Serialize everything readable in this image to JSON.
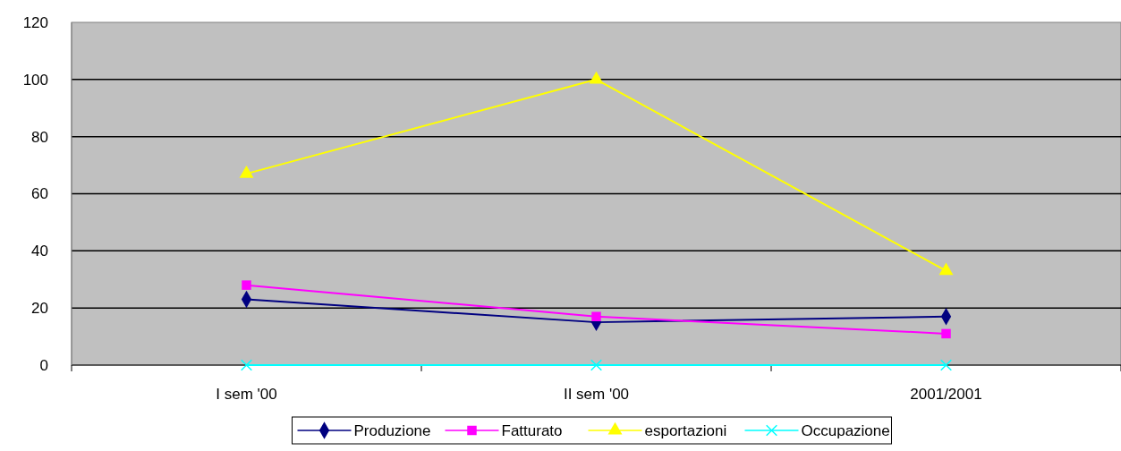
{
  "chart_data": {
    "type": "line",
    "categories": [
      "I sem '00",
      "II sem '00",
      "2001/2001"
    ],
    "ylim": [
      0,
      120
    ],
    "yticks": [
      0,
      20,
      40,
      60,
      80,
      100,
      120
    ],
    "grid": "y",
    "legend": "bottom",
    "series": [
      {
        "name": "Produzione",
        "color": "#000080",
        "marker": "diamond",
        "values": [
          23,
          15,
          17
        ]
      },
      {
        "name": "Fatturato",
        "color": "#ff00ff",
        "marker": "square",
        "values": [
          28,
          17,
          11
        ]
      },
      {
        "name": "esportazioni",
        "color": "#ffff00",
        "marker": "triangle",
        "values": [
          67,
          100,
          33
        ]
      },
      {
        "name": "Occupazione",
        "color": "#00ffff",
        "marker": "cross",
        "values": [
          0,
          0,
          0
        ]
      }
    ]
  }
}
